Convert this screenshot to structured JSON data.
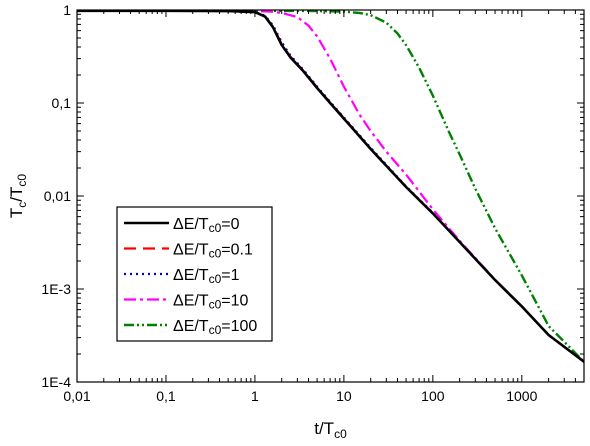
{
  "chart_data": {
    "type": "line",
    "xlabel": "t/T",
    "xlabel_sub": "c0",
    "ylabel": "T",
    "ylabel_sub1": "c",
    "ylabel_mid": "/T",
    "ylabel_sub2": "c0",
    "x_scale": "log",
    "y_scale": "log",
    "xlim": [
      0.01,
      5000
    ],
    "ylim": [
      0.0001,
      1
    ],
    "x_ticks": [
      {
        "value": 0.01,
        "label": "0,01"
      },
      {
        "value": 0.1,
        "label": "0,1"
      },
      {
        "value": 1,
        "label": "1"
      },
      {
        "value": 10,
        "label": "10"
      },
      {
        "value": 100,
        "label": "100"
      },
      {
        "value": 1000,
        "label": "1000"
      }
    ],
    "y_ticks": [
      {
        "value": 1,
        "label": "1"
      },
      {
        "value": 0.1,
        "label": "0,1"
      },
      {
        "value": 0.01,
        "label": "0,01"
      },
      {
        "value": 0.001,
        "label": "1E-3"
      },
      {
        "value": 0.0001,
        "label": "1E-4"
      }
    ],
    "grid": false,
    "legend_position": "bottom-left",
    "series": [
      {
        "name": "ΔE/Tc0=0",
        "label_main": "ΔE/T",
        "label_sub": "c0",
        "label_tail": "=0",
        "color": "#000000",
        "dash": "none",
        "width": 2.6,
        "points": [
          [
            0.01,
            0.98
          ],
          [
            0.1,
            0.98
          ],
          [
            0.5,
            0.975
          ],
          [
            1.0,
            0.95
          ],
          [
            1.3,
            0.85
          ],
          [
            1.6,
            0.65
          ],
          [
            2.0,
            0.42
          ],
          [
            2.5,
            0.31
          ],
          [
            3.5,
            0.22
          ],
          [
            5,
            0.145
          ],
          [
            7,
            0.1
          ],
          [
            10,
            0.068
          ],
          [
            20,
            0.032
          ],
          [
            50,
            0.0125
          ],
          [
            100,
            0.0065
          ],
          [
            200,
            0.0032
          ],
          [
            500,
            0.00125
          ],
          [
            1000,
            0.00065
          ],
          [
            2000,
            0.00032
          ],
          [
            5000,
            0.000165
          ]
        ]
      },
      {
        "name": "ΔE/Tc0=0.1",
        "label_main": "ΔE/T",
        "label_sub": "c0",
        "label_tail": "=0.1",
        "color": "#ff0000",
        "dash": "12,7",
        "width": 2.2,
        "points": [
          [
            0.01,
            0.98
          ],
          [
            0.1,
            0.98
          ],
          [
            0.5,
            0.975
          ],
          [
            1.0,
            0.95
          ],
          [
            1.3,
            0.855
          ],
          [
            1.6,
            0.66
          ],
          [
            2.0,
            0.43
          ],
          [
            2.5,
            0.315
          ],
          [
            3.5,
            0.222
          ],
          [
            5,
            0.147
          ],
          [
            7,
            0.101
          ],
          [
            10,
            0.069
          ],
          [
            20,
            0.032
          ],
          [
            50,
            0.0126
          ],
          [
            100,
            0.0065
          ],
          [
            200,
            0.0032
          ],
          [
            500,
            0.00125
          ],
          [
            1000,
            0.00065
          ],
          [
            2000,
            0.00032
          ],
          [
            5000,
            0.000165
          ]
        ]
      },
      {
        "name": "ΔE/Tc0=1",
        "label_main": "ΔE/T",
        "label_sub": "c0",
        "label_tail": "=1",
        "color": "#0000cc",
        "dash": "2,4",
        "width": 2.2,
        "points": [
          [
            0.01,
            0.98
          ],
          [
            0.1,
            0.98
          ],
          [
            0.5,
            0.975
          ],
          [
            1.0,
            0.955
          ],
          [
            1.3,
            0.87
          ],
          [
            1.6,
            0.68
          ],
          [
            2.0,
            0.45
          ],
          [
            2.5,
            0.325
          ],
          [
            3.5,
            0.228
          ],
          [
            5,
            0.15
          ],
          [
            7,
            0.103
          ],
          [
            10,
            0.07
          ],
          [
            20,
            0.033
          ],
          [
            50,
            0.0127
          ],
          [
            100,
            0.0066
          ],
          [
            200,
            0.0032
          ],
          [
            500,
            0.00125
          ],
          [
            1000,
            0.00065
          ],
          [
            2000,
            0.00032
          ],
          [
            5000,
            0.000165
          ]
        ]
      },
      {
        "name": "ΔE/Tc0=10",
        "label_main": "ΔE/T",
        "label_sub": "c0",
        "label_tail": "=10",
        "color": "#ff00ff",
        "dash": "12,4,3,4",
        "width": 2.2,
        "points": [
          [
            0.01,
            0.98
          ],
          [
            0.1,
            0.98
          ],
          [
            0.5,
            0.978
          ],
          [
            1.0,
            0.975
          ],
          [
            1.5,
            0.96
          ],
          [
            2.0,
            0.93
          ],
          [
            3.0,
            0.84
          ],
          [
            4.0,
            0.68
          ],
          [
            5.0,
            0.52
          ],
          [
            7.0,
            0.3
          ],
          [
            10,
            0.15
          ],
          [
            15,
            0.075
          ],
          [
            20,
            0.05
          ],
          [
            30,
            0.03
          ],
          [
            50,
            0.017
          ],
          [
            100,
            0.0072
          ],
          [
            200,
            0.0033
          ],
          [
            500,
            0.00126
          ],
          [
            1000,
            0.00065
          ],
          [
            2000,
            0.00032
          ],
          [
            5000,
            0.000165
          ]
        ]
      },
      {
        "name": "ΔE/Tc0=100",
        "label_main": "ΔE/T",
        "label_sub": "c0",
        "label_tail": "=100",
        "color": "#008000",
        "dash": "10,3,2,3,2,3",
        "width": 2.4,
        "points": [
          [
            0.01,
            0.98
          ],
          [
            0.1,
            0.98
          ],
          [
            1.0,
            0.98
          ],
          [
            5.0,
            0.975
          ],
          [
            10,
            0.96
          ],
          [
            15,
            0.93
          ],
          [
            20,
            0.88
          ],
          [
            30,
            0.73
          ],
          [
            40,
            0.56
          ],
          [
            50,
            0.42
          ],
          [
            70,
            0.24
          ],
          [
            100,
            0.12
          ],
          [
            150,
            0.05
          ],
          [
            200,
            0.028
          ],
          [
            300,
            0.012
          ],
          [
            500,
            0.0045
          ],
          [
            1000,
            0.0014
          ],
          [
            2000,
            0.0004
          ],
          [
            5000,
            0.000165
          ]
        ]
      }
    ]
  }
}
